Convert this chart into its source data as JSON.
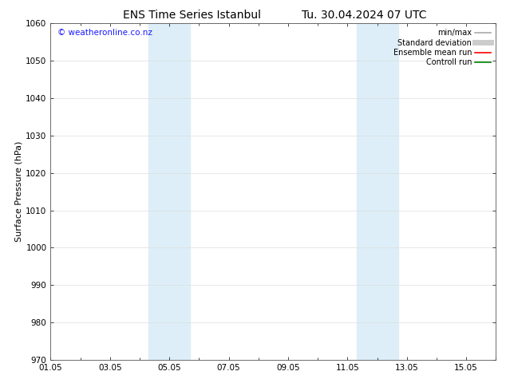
{
  "title_left": "ENS Time Series Istanbul",
  "title_right": "Tu. 30.04.2024 07 UTC",
  "ylabel": "Surface Pressure (hPa)",
  "ylim": [
    970,
    1060
  ],
  "yticks": [
    970,
    980,
    990,
    1000,
    1010,
    1020,
    1030,
    1040,
    1050,
    1060
  ],
  "xlim": [
    0,
    15
  ],
  "xtick_labels": [
    "01.05",
    "03.05",
    "05.05",
    "07.05",
    "09.05",
    "11.05",
    "13.05",
    "15.05"
  ],
  "xtick_positions": [
    0,
    2,
    4,
    6,
    8,
    10,
    12,
    14
  ],
  "shaded_bands": [
    {
      "x_start": 3.3,
      "x_end": 4.7
    },
    {
      "x_start": 10.3,
      "x_end": 11.7
    }
  ],
  "shade_color": "#ddeef8",
  "watermark_text": "© weatheronline.co.nz",
  "watermark_color": "#1a1aff",
  "legend_entries": [
    {
      "label": "min/max",
      "color": "#aaaaaa",
      "lw": 1.2,
      "style": "solid"
    },
    {
      "label": "Standard deviation",
      "color": "#cccccc",
      "lw": 5,
      "style": "solid"
    },
    {
      "label": "Ensemble mean run",
      "color": "#ff0000",
      "lw": 1.2,
      "style": "solid"
    },
    {
      "label": "Controll run",
      "color": "#008000",
      "lw": 1.2,
      "style": "solid"
    }
  ],
  "bg_color": "#ffffff",
  "grid_color": "#dddddd",
  "title_fontsize": 10,
  "tick_fontsize": 7.5,
  "ylabel_fontsize": 8,
  "legend_fontsize": 7,
  "watermark_fontsize": 7.5
}
